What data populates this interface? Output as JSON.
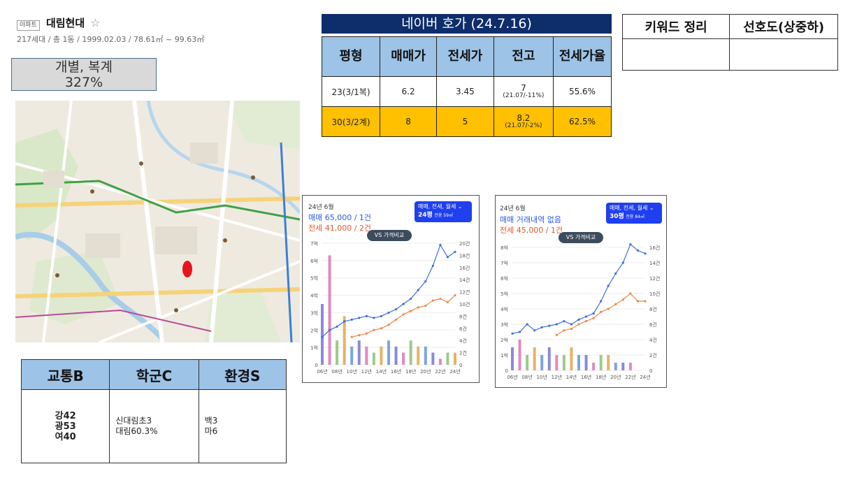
{
  "header": {
    "badge": "아파트",
    "name": "대림현대",
    "star": "☆",
    "info": "217세대 / 총 1동 / 1999.02.03 / 78.61㎡ ~ 99.63㎡"
  },
  "unit_type": {
    "line1": "개별, 복계",
    "line2": "327%"
  },
  "score_table": {
    "headers": [
      "교통B",
      "학군C",
      "환경S"
    ],
    "transport": [
      "강42",
      "광53",
      "여40"
    ],
    "school": [
      "신대림초3",
      "대림60.3%"
    ],
    "environment": [
      "백3",
      "마6"
    ]
  },
  "naver": {
    "title": "네이버 호가 (24.7.16)",
    "headers": [
      "평형",
      "매매가",
      "전세가",
      "전고",
      "전세가율"
    ],
    "rows": [
      {
        "size": "23(3/1복)",
        "sale": "6.2",
        "jeonse": "3.45",
        "peak": "7",
        "peak_sub": "(21.07/-11%)",
        "ratio": "55.6%"
      },
      {
        "size": "30(3/2계)",
        "sale": "8",
        "jeonse": "5",
        "peak": "8.2",
        "peak_sub": "(21.07/-2%)",
        "ratio": "62.5%"
      }
    ]
  },
  "keyword_table": {
    "headers": [
      "키워드 정리",
      "선호도(상중하)"
    ]
  },
  "chart_cards": [
    {
      "date": "24년 6월",
      "sale_text": "매매 65,000 / 1건",
      "rent_text": "전세 41,000 / 2건",
      "compare_btn": "VS 가격비교",
      "selector_top": "매매, 전세, 월세 ⌄",
      "selector_size": "24평",
      "selector_area": "전용 59㎡"
    },
    {
      "date": "24년 6월",
      "sale_text": "매매 거래내역 없음",
      "rent_text": "전세 45,000 / 1건",
      "compare_btn": "VS 가격비교",
      "selector_top": "매매, 전세, 월세 ⌄",
      "selector_size": "30평",
      "selector_area": "전용 84㎡"
    }
  ],
  "chart_data": [
    {
      "type": "line",
      "title": "",
      "x": [
        "06년",
        "07년",
        "08년",
        "09년",
        "10년",
        "11년",
        "12년",
        "13년",
        "14년",
        "15년",
        "16년",
        "17년",
        "18년",
        "19년",
        "20년",
        "21년",
        "22년",
        "23년",
        "24년"
      ],
      "x_ticks": [
        "06년",
        "08년",
        "10년",
        "12년",
        "14년",
        "16년",
        "18년",
        "20년",
        "22년",
        "24년"
      ],
      "y_ticks": [
        "0",
        "1억",
        "2억",
        "3억",
        "4억",
        "5억",
        "6억",
        "7억"
      ],
      "y2_ticks": [
        "0",
        "2건",
        "4건",
        "6건",
        "8건",
        "10건",
        "12건",
        "14건",
        "16건",
        "18건",
        "20건"
      ],
      "ylim": [
        0,
        7
      ],
      "y2lim": [
        0,
        20
      ],
      "series": [
        {
          "name": "매매",
          "color": "#3b6fe0",
          "values": [
            1.6,
            2.0,
            2.2,
            2.5,
            2.6,
            2.7,
            2.8,
            2.7,
            2.8,
            3.0,
            3.2,
            3.5,
            3.8,
            4.3,
            4.8,
            5.7,
            6.9,
            6.2,
            6.5
          ]
        },
        {
          "name": "전세",
          "color": "#f0874a",
          "values": [
            null,
            null,
            null,
            null,
            1.6,
            1.7,
            1.8,
            2.0,
            2.1,
            2.3,
            2.6,
            2.9,
            3.1,
            3.3,
            3.4,
            3.7,
            3.8,
            3.6,
            4.0
          ]
        }
      ],
      "volume": [
        10,
        18,
        4,
        8,
        3,
        4,
        3,
        2,
        3,
        4,
        3,
        2,
        4,
        3,
        3,
        2,
        1,
        2,
        2
      ]
    },
    {
      "type": "line",
      "title": "",
      "x": [
        "06년",
        "07년",
        "08년",
        "09년",
        "10년",
        "11년",
        "12년",
        "13년",
        "14년",
        "15년",
        "16년",
        "17년",
        "18년",
        "19년",
        "20년",
        "21년",
        "22년",
        "23년",
        "24년"
      ],
      "x_ticks": [
        "06년",
        "08년",
        "10년",
        "12년",
        "14년",
        "16년",
        "18년",
        "20년",
        "22년",
        "24년"
      ],
      "y_ticks": [
        "0",
        "1억",
        "2억",
        "3억",
        "4억",
        "5억",
        "6억",
        "7억",
        "8억"
      ],
      "y2_ticks": [
        "0",
        "2건",
        "4건",
        "6건",
        "8건",
        "10건",
        "12건",
        "14건",
        "16건"
      ],
      "ylim": [
        0,
        8
      ],
      "y2lim": [
        0,
        16
      ],
      "series": [
        {
          "name": "매매",
          "color": "#3b6fe0",
          "values": [
            2.4,
            2.5,
            3.0,
            2.6,
            2.8,
            2.9,
            3.0,
            3.2,
            3.0,
            3.3,
            3.5,
            3.7,
            4.5,
            5.5,
            6.3,
            7.0,
            8.2,
            7.8,
            7.6
          ]
        },
        {
          "name": "전세",
          "color": "#f0874a",
          "values": [
            null,
            null,
            null,
            null,
            null,
            null,
            2.3,
            2.6,
            2.7,
            3.0,
            3.2,
            3.4,
            3.8,
            4.0,
            4.3,
            4.6,
            5.0,
            4.5,
            4.5
          ]
        }
      ],
      "volume": [
        3,
        4,
        2,
        3,
        2,
        3,
        2,
        2,
        3,
        2,
        2,
        1,
        2,
        2,
        1,
        1,
        1,
        0,
        0
      ]
    }
  ]
}
